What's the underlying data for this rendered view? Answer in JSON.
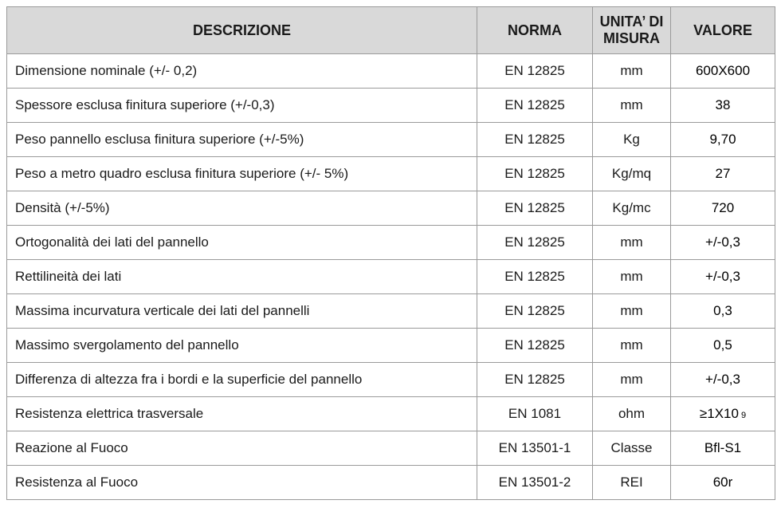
{
  "headers": {
    "descrizione": "DESCRIZIONE",
    "norma": "NORMA",
    "unita": "UNITA’ DI MISURA",
    "valore": "VALORE"
  },
  "rows": [
    {
      "descrizione": "Dimensione nominale (+/- 0,2)",
      "norma": "EN 12825",
      "unita": "mm",
      "valore": "600X600"
    },
    {
      "descrizione": "Spessore  esclusa  finitura superiore (+/-0,3)",
      "norma": "EN 12825",
      "unita": "mm",
      "valore": "38"
    },
    {
      "descrizione": "Peso pannello esclusa finitura superiore (+/-5%)",
      "norma": "EN 12825",
      "unita": "Kg",
      "valore": "9,70"
    },
    {
      "descrizione": "Peso a metro quadro  esclusa finitura superiore (+/- 5%)",
      "norma": "EN 12825",
      "unita": "Kg/mq",
      "valore": "27"
    },
    {
      "descrizione": "Densità (+/-5%)",
      "norma": "EN 12825",
      "unita": "Kg/mc",
      "valore": "720"
    },
    {
      "descrizione": "Ortogonalità dei lati del pannello",
      "norma": "EN 12825",
      "unita": "mm",
      "valore": "+/-0,3"
    },
    {
      "descrizione": "Rettilineità dei lati",
      "norma": "EN 12825",
      "unita": "mm",
      "valore": "+/-0,3"
    },
    {
      "descrizione": "Massima incurvatura verticale dei lati del pannelli",
      "norma": "EN 12825",
      "unita": "mm",
      "valore": "0,3"
    },
    {
      "descrizione": "Massimo svergolamento del pannello",
      "norma": "EN 12825",
      "unita": "mm",
      "valore": "0,5"
    },
    {
      "descrizione": "Differenza di altezza fra i bordi e la  superficie del pannello",
      "norma": "EN 12825",
      "unita": "mm",
      "valore": "+/-0,3"
    },
    {
      "descrizione": "Resistenza elettrica trasversale",
      "norma": "EN 1081",
      "unita": "ohm",
      "valore": "≥1X10",
      "esponente": "9"
    },
    {
      "descrizione": "Reazione al Fuoco",
      "norma": "EN 13501-1",
      "unita": "Classe",
      "valore": "Bfl-S1"
    },
    {
      "descrizione": "Resistenza al Fuoco",
      "norma": "EN 13501-2",
      "unita": "REI",
      "valore": "60r"
    }
  ]
}
